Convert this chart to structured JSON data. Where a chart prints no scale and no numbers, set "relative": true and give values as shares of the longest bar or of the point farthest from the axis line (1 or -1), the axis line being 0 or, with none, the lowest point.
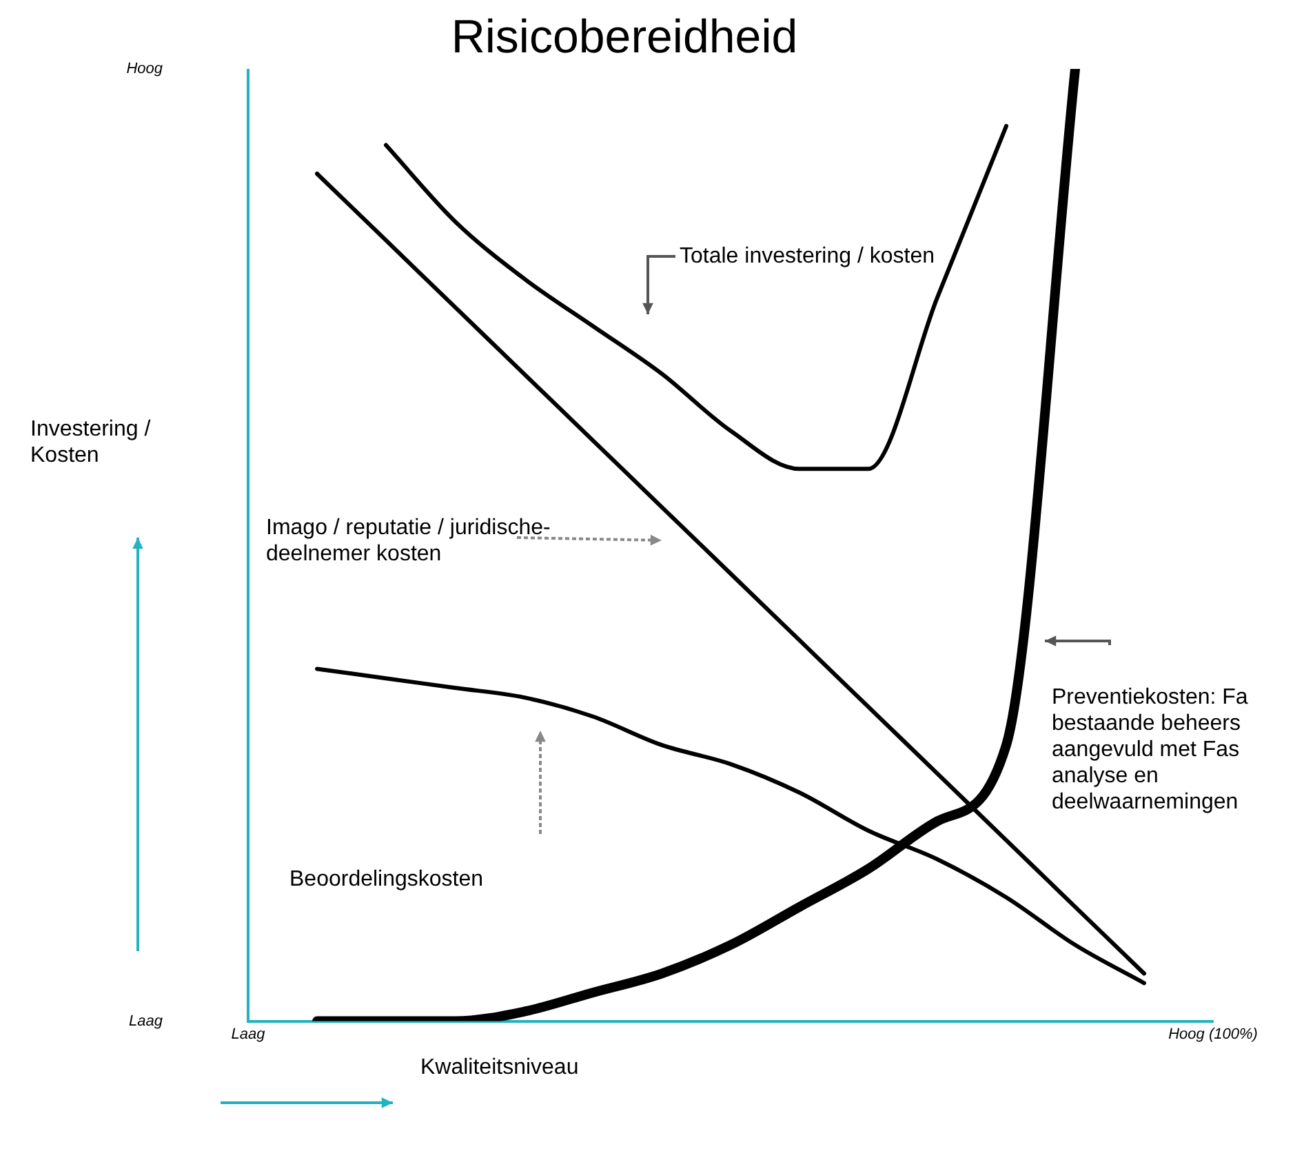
{
  "chart_data": {
    "type": "line",
    "title": "Risicobereidheid",
    "xlabel": "Kwaliteitsniveau",
    "ylabel": "Investering / Kosten",
    "relative": true,
    "categories": [
      "Laag",
      null,
      null,
      null,
      null,
      null,
      null,
      null,
      null,
      null,
      null,
      null,
      null,
      null,
      "Hoog (100%)"
    ],
    "grid": false,
    "legend": false,
    "marker": "none",
    "line_style": "solid",
    "series": [
      {
        "color": "#000000",
        "values": [
          null,
          null,
          0.92,
          0.84,
          0.78,
          0.73,
          0.68,
          0.62,
          0.58,
          0.58,
          0.76,
          0.94,
          null,
          null,
          null
        ]
      },
      {
        "color": "#000000",
        "values": [
          null,
          0.89,
          0.82,
          0.75,
          0.68,
          0.61,
          0.54,
          0.47,
          0.4,
          0.33,
          0.26,
          0.19,
          0.12,
          0.05,
          null
        ]
      },
      {
        "color": "#000000",
        "values": [
          null,
          0.37,
          0.36,
          0.35,
          0.34,
          0.32,
          0.29,
          0.27,
          0.24,
          0.2,
          0.17,
          0.13,
          0.08,
          0.04,
          null
        ]
      },
      {
        "color": "#000000",
        "values": [
          null,
          0,
          0,
          0,
          0.01,
          0.03,
          0.05,
          0.08,
          0.12,
          0.16,
          0.21,
          0.29,
          1.0,
          null,
          null
        ]
      }
    ],
    "annotations": [
      "Hoog",
      "Laag",
      "Totale investering / kosten",
      "Imago / reputatie / juridische- deelnemer kosten",
      "Beoordelingskosten",
      "Preventiekosten: Fa bestaande beheers aangevuld met Fas analyse en deelwaarnemingen"
    ]
  }
}
